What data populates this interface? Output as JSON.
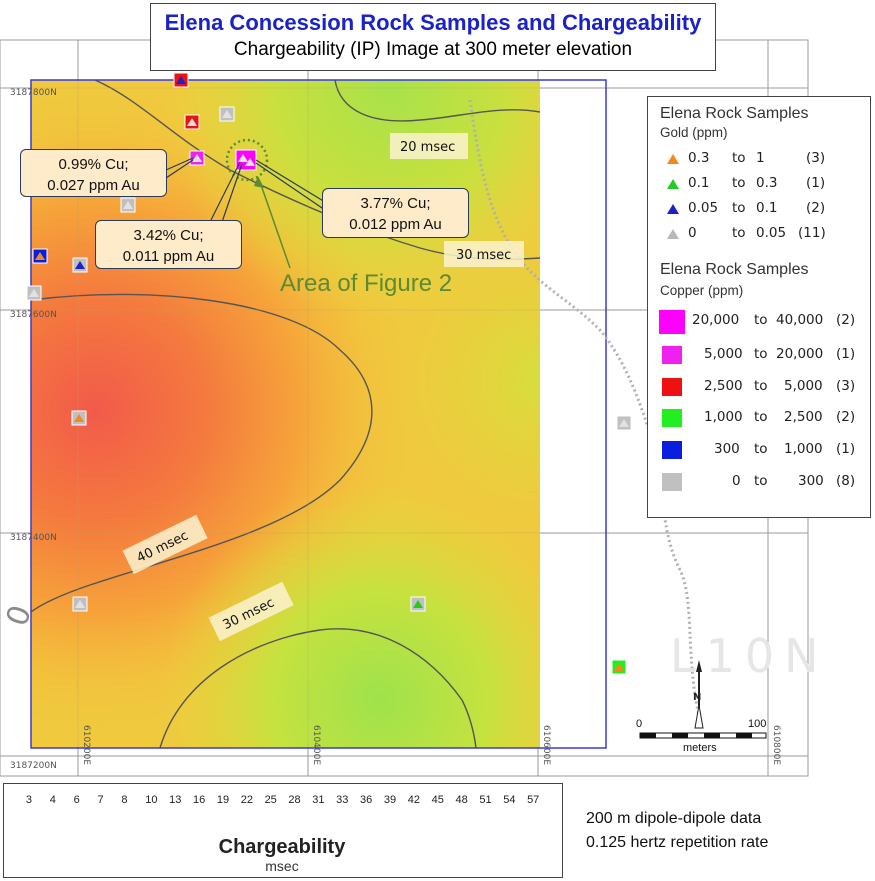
{
  "title": {
    "main": "Elena Concession Rock Samples and Chargeability",
    "subtitle": "Chargeability (IP) Image at 300 meter elevation"
  },
  "grid_labels": {
    "northings": [
      "3187800N",
      "3187600N",
      "3187400N",
      "3187200N"
    ],
    "eastings": [
      "610200E",
      "610400E",
      "610600E",
      "610800E"
    ]
  },
  "contours": [
    "20 msec",
    "30 msec",
    "40 msec",
    "30 msec"
  ],
  "watermarks": {
    "line": "L10N",
    "figure_digit": "0"
  },
  "callouts": [
    {
      "cu": "0.99% Cu;",
      "au": "0.027 ppm Au"
    },
    {
      "cu": "3.42% Cu;",
      "au": "0.011 ppm Au"
    },
    {
      "cu": "3.77% Cu;",
      "au": "0.012 ppm Au"
    }
  ],
  "area_label": "Area of Figure 2",
  "legend": {
    "gold": {
      "title": "Elena Rock Samples",
      "subtitle": "Gold (ppm)",
      "rows": [
        {
          "from": "0.3",
          "to": "1",
          "count": "(3)",
          "color": "#f08a1e"
        },
        {
          "from": "0.1",
          "to": "0.3",
          "count": "(1)",
          "color": "#22cc22"
        },
        {
          "from": "0.05",
          "to": "0.1",
          "count": "(2)",
          "color": "#1a22c8"
        },
        {
          "from": "0",
          "to": "0.05",
          "count": "(11)",
          "color": "#b8b8b8"
        }
      ]
    },
    "copper": {
      "title": "Elena Rock Samples",
      "subtitle": "Copper (ppm)",
      "rows": [
        {
          "from": "20,000",
          "to": "40,000",
          "count": "(2)",
          "color": "#ff00ff"
        },
        {
          "from": "5,000",
          "to": "20,000",
          "count": "(1)",
          "color": "#f020f0"
        },
        {
          "from": "2,500",
          "to": "5,000",
          "count": "(3)",
          "color": "#ee1111"
        },
        {
          "from": "1,000",
          "to": "2,500",
          "count": "(2)",
          "color": "#22ee22"
        },
        {
          "from": "300",
          "to": "1,000",
          "count": "(1)",
          "color": "#0a1ee0"
        },
        {
          "from": "0",
          "to": "300",
          "count": "(8)",
          "color": "#c0c0c0"
        }
      ],
      "to_word": "to"
    }
  },
  "colorbar": {
    "title": "Chargeability",
    "unit": "msec",
    "ticks": [
      "3",
      "4",
      "6",
      "7",
      "8",
      "10",
      "13",
      "16",
      "19",
      "22",
      "25",
      "28",
      "31",
      "33",
      "36",
      "39",
      "42",
      "45",
      "48",
      "51",
      "54",
      "57"
    ]
  },
  "scale": {
    "start": "0",
    "end": "100",
    "unit": "meters",
    "north": "N"
  },
  "notes": [
    "200 m dipole-dipole data",
    "0.125 hertz repetition rate"
  ]
}
